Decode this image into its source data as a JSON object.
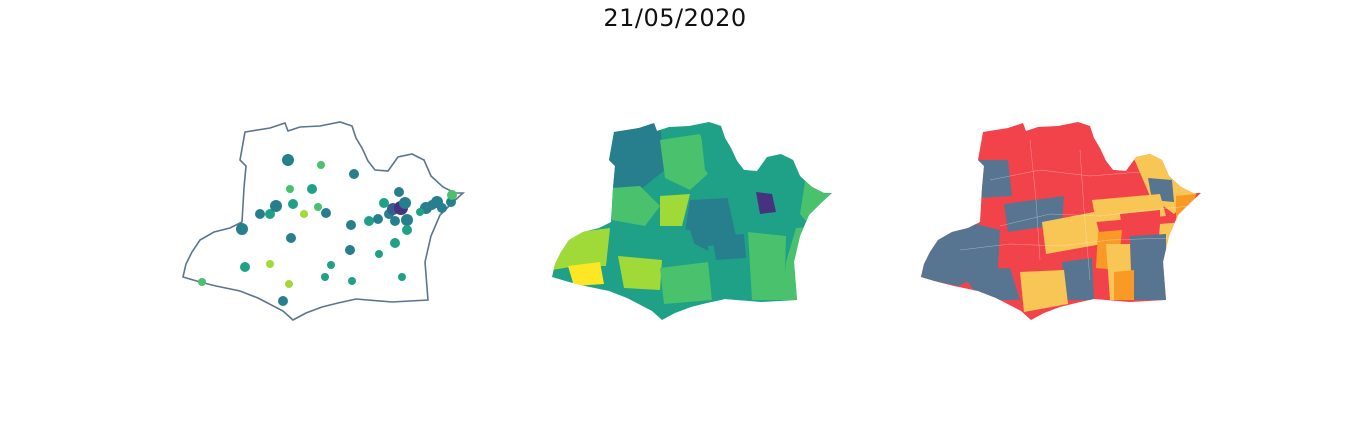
{
  "title": "21/05/2020",
  "colors": {
    "outline": "#5a7590",
    "viridis": [
      "#46327e",
      "#365c8d",
      "#277f8e",
      "#1fa187",
      "#4ac16d",
      "#a0da39",
      "#fde725"
    ],
    "risk": {
      "red": "#f2434b",
      "orange": "#fa9a26",
      "yellow": "#f7c655",
      "slate": "#577590"
    }
  },
  "panels": [
    {
      "name": "bubble-map",
      "kind": "proportional-symbols",
      "background": "#ffffff"
    },
    {
      "name": "viridis-choropleth",
      "kind": "choropleth"
    },
    {
      "name": "risk-choropleth",
      "kind": "choropleth"
    }
  ]
}
